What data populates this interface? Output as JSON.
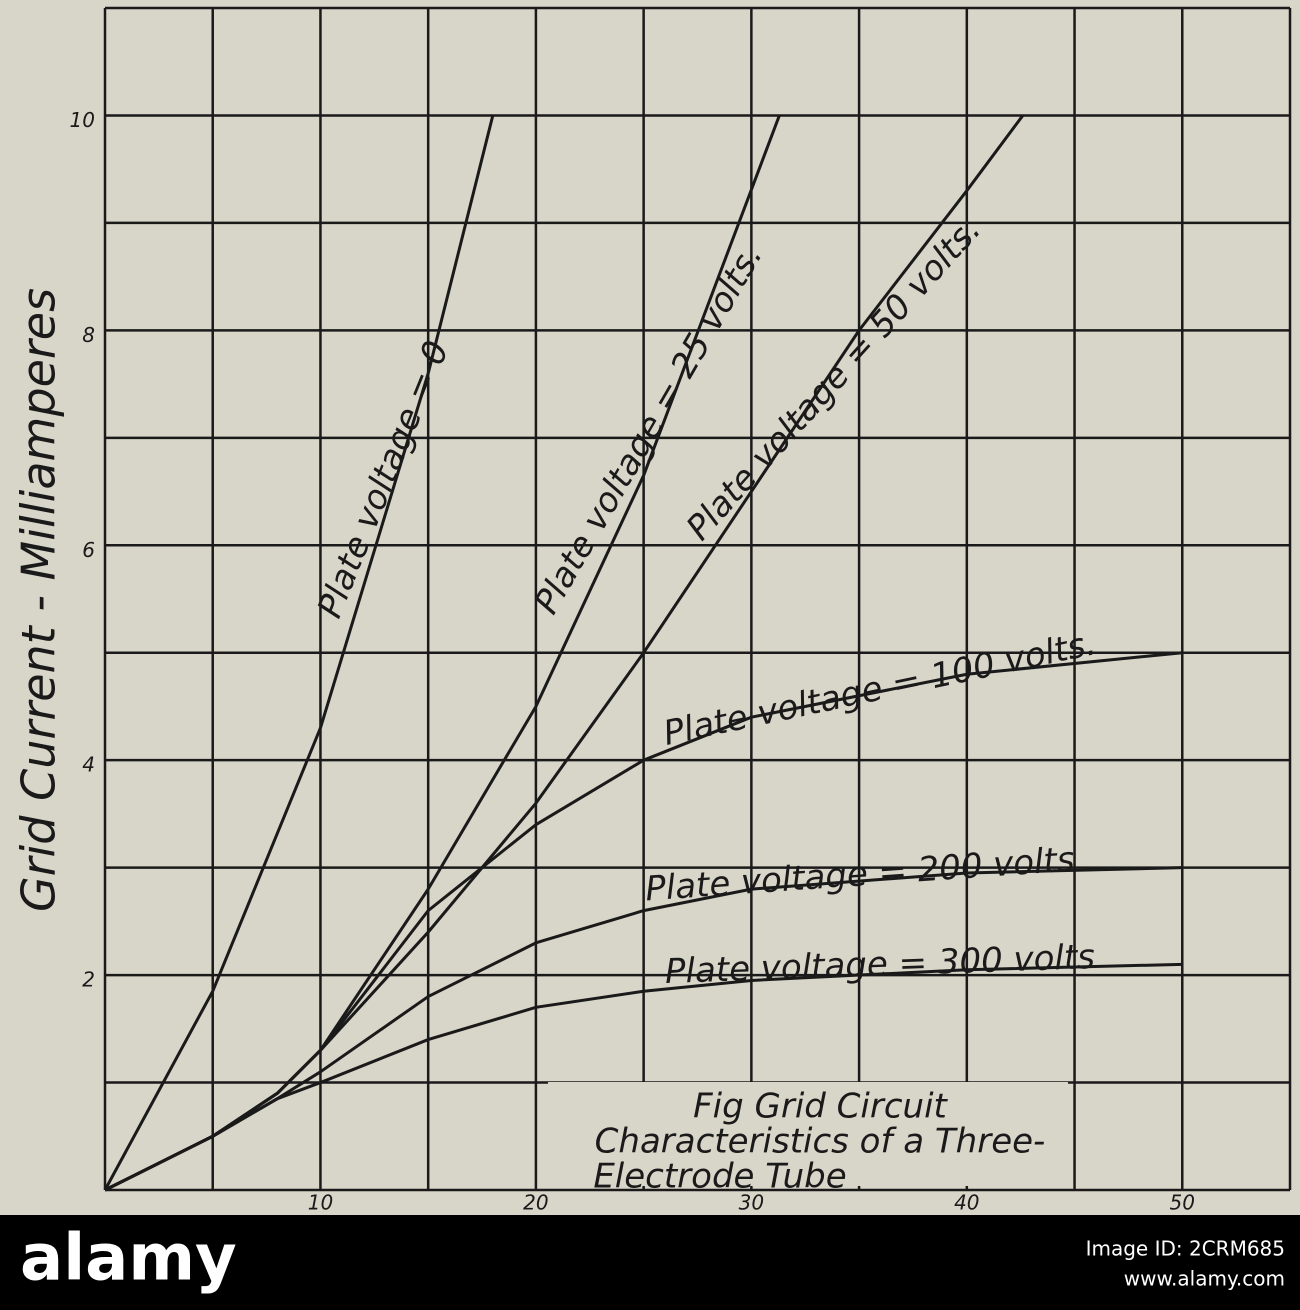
{
  "chart_data": {
    "type": "line",
    "y_label": "Grid Current - Milliamperes",
    "caption": [
      "Fig   Grid Circuit",
      "Characteristics of a Three-",
      "Electrode Tube"
    ],
    "xlim": [
      0,
      55
    ],
    "ylim": [
      0,
      11
    ],
    "xticks": [
      10,
      20,
      30,
      40,
      50
    ],
    "yticks": [
      2,
      4,
      6,
      8,
      10
    ],
    "xgrid": [
      0,
      5,
      10,
      15,
      20,
      25,
      30,
      35,
      40,
      45,
      50,
      55
    ],
    "ygrid": [
      0,
      1,
      2,
      3,
      4,
      5,
      6,
      7,
      8,
      9,
      10,
      11
    ],
    "grid": true,
    "color": "#1a1a1a",
    "series": [
      {
        "name": "Plate voltage = 0",
        "x": [
          0,
          5,
          10,
          15,
          18
        ],
        "values": [
          0,
          1.85,
          4.3,
          7.6,
          10
        ]
      },
      {
        "name": "Plate voltage = 25 volts.",
        "x": [
          0,
          5,
          8,
          10,
          15,
          20,
          25,
          31.3
        ],
        "values": [
          0,
          0.5,
          0.9,
          1.3,
          2.8,
          4.5,
          6.65,
          10
        ]
      },
      {
        "name": "Plate voltage = 50 volts.",
        "x": [
          0,
          5,
          8,
          10,
          15,
          20,
          25,
          30,
          35,
          40,
          42.6
        ],
        "values": [
          0,
          0.5,
          0.9,
          1.3,
          2.4,
          3.6,
          5.0,
          6.5,
          8.0,
          9.3,
          10
        ]
      },
      {
        "name": "Plate voltage = 100 volts.",
        "x": [
          0,
          5,
          8,
          10,
          15,
          20,
          25,
          30,
          40,
          50
        ],
        "values": [
          0,
          0.5,
          0.9,
          1.3,
          2.6,
          3.4,
          4.0,
          4.4,
          4.8,
          5.0
        ]
      },
      {
        "name": "Plate voltage = 200 volts",
        "x": [
          0,
          5,
          8,
          10,
          15,
          20,
          25,
          30,
          40,
          50
        ],
        "values": [
          0,
          0.5,
          0.85,
          1.1,
          1.8,
          2.3,
          2.6,
          2.8,
          2.95,
          3.0
        ]
      },
      {
        "name": "Plate voltage = 300 volts",
        "x": [
          0,
          5,
          8,
          10,
          15,
          20,
          25,
          30,
          40,
          50
        ],
        "values": [
          0,
          0.5,
          0.85,
          1.0,
          1.4,
          1.7,
          1.85,
          1.95,
          2.05,
          2.1
        ]
      }
    ]
  },
  "watermark": {
    "logo": "alamy",
    "image_id": "Image ID: 2CRM685",
    "url": "www.alamy.com"
  }
}
